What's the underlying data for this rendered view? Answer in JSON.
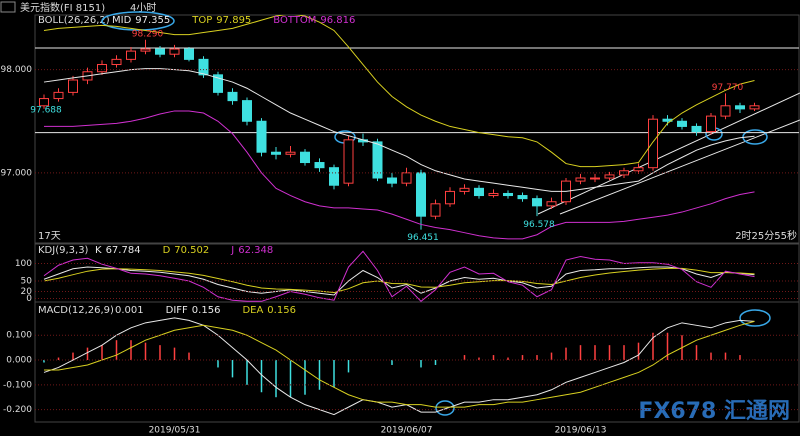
{
  "status_left": "17天",
  "status_right": "2时25分55秒",
  "watermark": "FX678 汇通网",
  "chart_data": [
    {
      "type": "candlestick",
      "title": "美元指数(FI 8151)",
      "subtitle": "4小时",
      "indicator": "BOLL(26,26,2)",
      "categories": [
        null,
        null,
        null,
        null,
        null,
        null,
        null,
        null,
        null,
        "2019/05/31",
        null,
        null,
        null,
        null,
        null,
        null,
        null,
        null,
        null,
        null,
        null,
        null,
        null,
        null,
        null,
        "2019/06/07",
        null,
        null,
        null,
        null,
        null,
        null,
        null,
        null,
        null,
        null,
        null,
        "2019/06/13",
        null,
        null,
        null,
        null,
        null,
        null,
        null,
        null,
        null,
        null,
        null,
        null
      ],
      "open": [
        97.65,
        97.72,
        97.78,
        97.9,
        97.98,
        98.05,
        98.1,
        98.18,
        98.2,
        98.15,
        98.2,
        98.1,
        97.95,
        97.78,
        97.7,
        97.5,
        97.2,
        97.18,
        97.2,
        97.1,
        97.05,
        96.9,
        97.32,
        97.3,
        96.95,
        96.9,
        97.0,
        96.58,
        96.7,
        96.82,
        96.85,
        96.78,
        96.8,
        96.78,
        96.75,
        96.68,
        96.72,
        96.92,
        96.95,
        96.95,
        96.98,
        97.02,
        97.05,
        97.52,
        97.5,
        97.45,
        97.4,
        97.55,
        97.65,
        97.62
      ],
      "high": [
        97.76,
        97.82,
        97.94,
        98.02,
        98.09,
        98.14,
        98.22,
        98.29,
        98.23,
        98.24,
        98.22,
        98.13,
        97.98,
        97.82,
        97.73,
        97.53,
        97.25,
        97.26,
        97.23,
        97.14,
        97.08,
        97.36,
        97.38,
        97.33,
        97.0,
        97.05,
        97.03,
        96.74,
        96.86,
        96.89,
        96.88,
        96.84,
        96.83,
        96.81,
        96.78,
        96.76,
        96.95,
        96.99,
        96.99,
        97.01,
        97.05,
        97.09,
        97.56,
        97.56,
        97.53,
        97.48,
        97.58,
        97.77,
        97.68,
        97.68
      ],
      "low": [
        97.62,
        97.69,
        97.75,
        97.86,
        97.95,
        98.02,
        98.07,
        98.15,
        98.12,
        98.12,
        98.08,
        97.92,
        97.75,
        97.66,
        97.46,
        97.16,
        97.13,
        97.15,
        97.07,
        97.01,
        96.84,
        96.87,
        97.26,
        96.92,
        96.86,
        96.87,
        96.45,
        96.55,
        96.67,
        96.79,
        96.75,
        96.76,
        96.75,
        96.72,
        96.58,
        96.65,
        96.69,
        96.89,
        96.91,
        96.93,
        96.95,
        96.99,
        97.02,
        97.46,
        97.42,
        97.36,
        97.37,
        97.52,
        97.58,
        97.6
      ],
      "close": [
        97.72,
        97.78,
        97.9,
        97.98,
        98.05,
        98.1,
        98.18,
        98.2,
        98.15,
        98.2,
        98.1,
        97.95,
        97.78,
        97.7,
        97.5,
        97.2,
        97.18,
        97.2,
        97.1,
        97.05,
        96.88,
        97.32,
        97.3,
        96.95,
        96.9,
        97.0,
        96.58,
        96.7,
        96.82,
        96.85,
        96.78,
        96.8,
        96.78,
        96.75,
        96.68,
        96.72,
        96.92,
        96.95,
        96.95,
        96.98,
        97.02,
        97.05,
        97.52,
        97.5,
        97.45,
        97.4,
        97.55,
        97.65,
        97.62,
        97.65
      ],
      "up_color": "#ff4040",
      "down_color": "#3fe0e0",
      "series": [
        {
          "name": "MID",
          "color": "#e8e8e8",
          "values": [
            97.88,
            97.9,
            97.92,
            97.94,
            97.96,
            97.98,
            98.0,
            98.01,
            98.01,
            98.0,
            97.99,
            97.96,
            97.92,
            97.88,
            97.82,
            97.74,
            97.66,
            97.58,
            97.52,
            97.46,
            97.4,
            97.36,
            97.32,
            97.28,
            97.22,
            97.16,
            97.08,
            97.02,
            96.98,
            96.94,
            96.92,
            96.9,
            96.88,
            96.86,
            96.84,
            96.82,
            96.82,
            96.84,
            96.86,
            96.88,
            96.9,
            96.92,
            97.0,
            97.08,
            97.15,
            97.22,
            97.27,
            97.31,
            97.34,
            97.355
          ]
        },
        {
          "name": "TOP",
          "color": "#d8d020",
          "values": [
            98.38,
            98.4,
            98.41,
            98.42,
            98.43,
            98.42,
            98.4,
            98.38,
            98.36,
            98.34,
            98.34,
            98.36,
            98.38,
            98.4,
            98.44,
            98.48,
            98.52,
            98.54,
            98.52,
            98.46,
            98.38,
            98.22,
            98.05,
            97.88,
            97.74,
            97.64,
            97.56,
            97.5,
            97.45,
            97.42,
            97.39,
            97.37,
            97.35,
            97.34,
            97.3,
            97.2,
            97.09,
            97.06,
            97.06,
            97.07,
            97.08,
            97.1,
            97.3,
            97.48,
            97.58,
            97.66,
            97.73,
            97.8,
            97.86,
            97.895
          ]
        },
        {
          "name": "BOTTOM",
          "color": "#d030d0",
          "values": [
            97.45,
            97.45,
            97.45,
            97.46,
            97.47,
            97.48,
            97.5,
            97.53,
            97.57,
            97.6,
            97.6,
            97.58,
            97.5,
            97.38,
            97.2,
            97.0,
            96.85,
            96.78,
            96.72,
            96.68,
            96.66,
            96.66,
            96.65,
            96.64,
            96.6,
            96.55,
            96.5,
            96.47,
            96.45,
            96.42,
            96.39,
            96.37,
            96.36,
            96.36,
            96.4,
            96.48,
            96.52,
            96.52,
            96.52,
            96.52,
            96.53,
            96.55,
            96.57,
            96.59,
            96.62,
            96.66,
            96.7,
            96.75,
            96.79,
            96.816
          ]
        }
      ],
      "annotations": [
        {
          "index": 0,
          "value": 97.688,
          "label": "97.688",
          "color": "#3fe0e0"
        },
        {
          "index": 7,
          "value": 98.29,
          "label": "98.290",
          "color": "#ff4040"
        },
        {
          "index": 26,
          "value": 96.451,
          "label": "96.451",
          "color": "#3fe0e0"
        },
        {
          "index": 34,
          "value": 96.578,
          "label": "96.578",
          "color": "#3fe0e0"
        },
        {
          "index": 47,
          "value": 97.77,
          "label": "97.770",
          "color": "#ff4040"
        }
      ],
      "hlines": [
        98.21,
        97.39
      ],
      "ylim": [
        96.32,
        98.53
      ],
      "yticks": [
        {
          "value": 98,
          "label": "98.000"
        },
        {
          "value": 97,
          "label": "97.000"
        }
      ],
      "grid": true
    },
    {
      "type": "line",
      "indicator": "KDJ(9,3,3)",
      "series": [
        {
          "name": "K",
          "color": "#e8e8e8",
          "values": [
            55,
            70,
            85,
            90,
            88,
            85,
            80,
            78,
            75,
            70,
            65,
            55,
            40,
            30,
            20,
            15,
            20,
            25,
            20,
            15,
            10,
            50,
            80,
            60,
            30,
            40,
            15,
            30,
            50,
            60,
            55,
            58,
            50,
            45,
            30,
            35,
            70,
            80,
            82,
            85,
            85,
            88,
            90,
            90,
            85,
            70,
            60,
            75,
            72,
            67.784
          ]
        },
        {
          "name": "D",
          "color": "#d8d020",
          "values": [
            50,
            58,
            68,
            78,
            84,
            85,
            84,
            82,
            80,
            76,
            72,
            66,
            57,
            48,
            38,
            30,
            27,
            26,
            24,
            21,
            17,
            28,
            45,
            50,
            43,
            42,
            33,
            32,
            38,
            45,
            48,
            51,
            51,
            49,
            43,
            40,
            50,
            60,
            67,
            73,
            77,
            81,
            84,
            86,
            86,
            81,
            74,
            74,
            73,
            70.502
          ]
        },
        {
          "name": "J",
          "color": "#d030d0",
          "values": [
            65,
            95,
            110,
            115,
            98,
            86,
            72,
            70,
            65,
            58,
            50,
            32,
            5,
            -5,
            -8,
            -8,
            5,
            20,
            12,
            2,
            -5,
            90,
            135,
            80,
            5,
            35,
            -8,
            25,
            75,
            90,
            70,
            72,
            48,
            38,
            5,
            25,
            110,
            120,
            112,
            110,
            100,
            102,
            102,
            98,
            83,
            48,
            32,
            78,
            70,
            62.348
          ]
        }
      ],
      "ylim": [
        -10,
        150
      ],
      "yticks": [
        0,
        20,
        50,
        100
      ],
      "grid": true
    },
    {
      "type": "line",
      "indicator": "MACD(12,26,9)",
      "series": [
        {
          "type": "bar",
          "color": "#ff4040",
          "negative_color": "#3fe0e0",
          "values": [
            -0.01,
            0.01,
            0.03,
            0.05,
            0.06,
            0.08,
            0.08,
            0.07,
            0.06,
            0.05,
            0.03,
            0.0,
            -0.03,
            -0.07,
            -0.1,
            -0.13,
            -0.15,
            -0.15,
            -0.14,
            -0.12,
            -0.11,
            -0.05,
            0.0,
            0.0,
            -0.02,
            0.0,
            -0.03,
            -0.02,
            0.0,
            0.02,
            0.01,
            0.02,
            0.01,
            0.02,
            0.02,
            0.03,
            0.05,
            0.06,
            0.06,
            0.06,
            0.06,
            0.07,
            0.11,
            0.11,
            0.1,
            0.06,
            0.03,
            0.03,
            0.02,
            0.001
          ]
        },
        {
          "name": "DIFF",
          "color": "#e8e8e8",
          "values": [
            -0.05,
            -0.03,
            0.0,
            0.03,
            0.06,
            0.1,
            0.13,
            0.15,
            0.16,
            0.17,
            0.16,
            0.14,
            0.1,
            0.05,
            0.0,
            -0.06,
            -0.11,
            -0.15,
            -0.18,
            -0.2,
            -0.22,
            -0.19,
            -0.16,
            -0.17,
            -0.19,
            -0.18,
            -0.21,
            -0.21,
            -0.19,
            -0.17,
            -0.17,
            -0.16,
            -0.16,
            -0.15,
            -0.14,
            -0.12,
            -0.09,
            -0.07,
            -0.05,
            -0.03,
            -0.01,
            0.02,
            0.09,
            0.13,
            0.15,
            0.14,
            0.13,
            0.15,
            0.16,
            0.156
          ]
        },
        {
          "name": "DEA",
          "color": "#d8d020",
          "values": [
            -0.04,
            -0.04,
            -0.03,
            -0.02,
            0.0,
            0.02,
            0.05,
            0.08,
            0.1,
            0.12,
            0.13,
            0.14,
            0.13,
            0.12,
            0.1,
            0.07,
            0.04,
            0.0,
            -0.04,
            -0.08,
            -0.11,
            -0.14,
            -0.16,
            -0.17,
            -0.17,
            -0.18,
            -0.18,
            -0.19,
            -0.19,
            -0.19,
            -0.18,
            -0.18,
            -0.17,
            -0.17,
            -0.16,
            -0.15,
            -0.14,
            -0.13,
            -0.11,
            -0.09,
            -0.07,
            -0.05,
            -0.02,
            0.02,
            0.05,
            0.08,
            0.1,
            0.12,
            0.14,
            0.156
          ]
        }
      ],
      "ylim": [
        -0.25,
        0.23
      ],
      "yticks": [
        {
          "value": 0.1,
          "label": "0.100"
        },
        {
          "value": 0,
          "label": "0.000"
        },
        {
          "value": -0.1,
          "label": "-0.100"
        },
        {
          "value": -0.2,
          "label": "-0.200"
        }
      ],
      "grid": true
    }
  ]
}
